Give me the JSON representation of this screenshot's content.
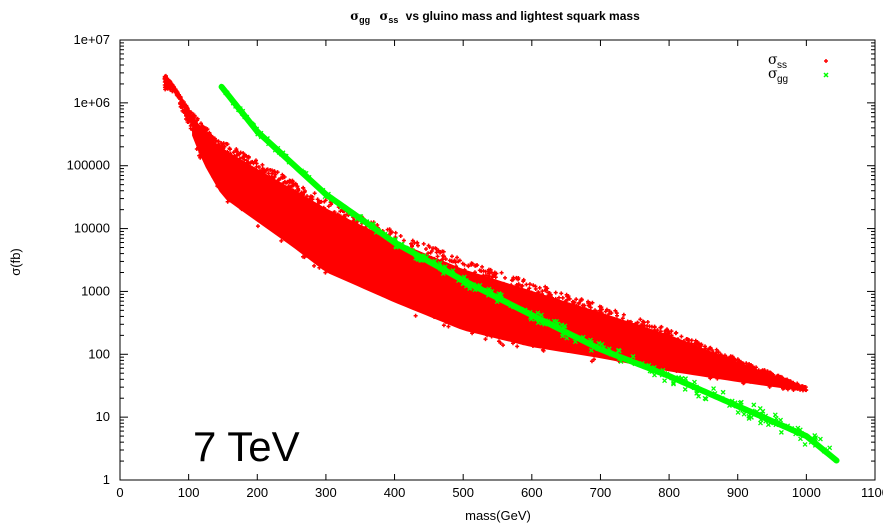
{
  "chart_data": {
    "type": "scatter",
    "title_parts": {
      "a_sym": "σ",
      "a_sub": "gg",
      "b_sym": "σ",
      "b_sub": "ss",
      "rest": "vs gluino mass and lightest squark mass"
    },
    "xlabel": "mass(GeV)",
    "ylabel": "σ(fb)",
    "xlim": [
      0,
      1100
    ],
    "ylim": [
      1,
      10000000
    ],
    "y_scale": "log",
    "x_ticks": [
      "0",
      "100",
      "200",
      "300",
      "400",
      "500",
      "600",
      "700",
      "800",
      "900",
      "1000",
      "1100"
    ],
    "y_ticks": [
      "1",
      "10",
      "100",
      "1000",
      "10000",
      "100000",
      "1e+06",
      "1e+07"
    ],
    "grid": false,
    "legend_position": "top-right",
    "annotation": "7 TeV",
    "series": [
      {
        "name_sym": "σ",
        "name_sub": "ss",
        "marker": "+",
        "color": "#ff0000",
        "x_range": [
          65,
          1000
        ],
        "upper_envelope": [
          [
            65,
            3000000
          ],
          [
            100,
            800000
          ],
          [
            140,
            280000
          ],
          [
            200,
            120000
          ],
          [
            300,
            30000
          ],
          [
            400,
            9000
          ],
          [
            500,
            3200
          ],
          [
            600,
            1400
          ],
          [
            700,
            600
          ],
          [
            800,
            250
          ],
          [
            900,
            85
          ],
          [
            1000,
            30
          ]
        ],
        "lower_envelope": [
          [
            80,
            1500000
          ],
          [
            120,
            100000
          ],
          [
            150,
            25000
          ],
          [
            200,
            10000
          ],
          [
            250,
            4000
          ],
          [
            300,
            1500
          ],
          [
            400,
            500
          ],
          [
            500,
            180
          ],
          [
            600,
            100
          ],
          [
            700,
            70
          ],
          [
            800,
            45
          ],
          [
            900,
            33
          ],
          [
            1000,
            25
          ]
        ]
      },
      {
        "name_sym": "σ",
        "name_sub": "gg",
        "marker": "x",
        "color": "#00ff00",
        "x_range": [
          148,
          1045
        ],
        "curve": [
          [
            148,
            1800000
          ],
          [
            200,
            350000
          ],
          [
            300,
            35000
          ],
          [
            400,
            6000
          ],
          [
            500,
            1500
          ],
          [
            600,
            420
          ],
          [
            700,
            120
          ],
          [
            800,
            45
          ],
          [
            900,
            15
          ],
          [
            1000,
            5
          ],
          [
            1045,
            2
          ]
        ]
      }
    ]
  }
}
